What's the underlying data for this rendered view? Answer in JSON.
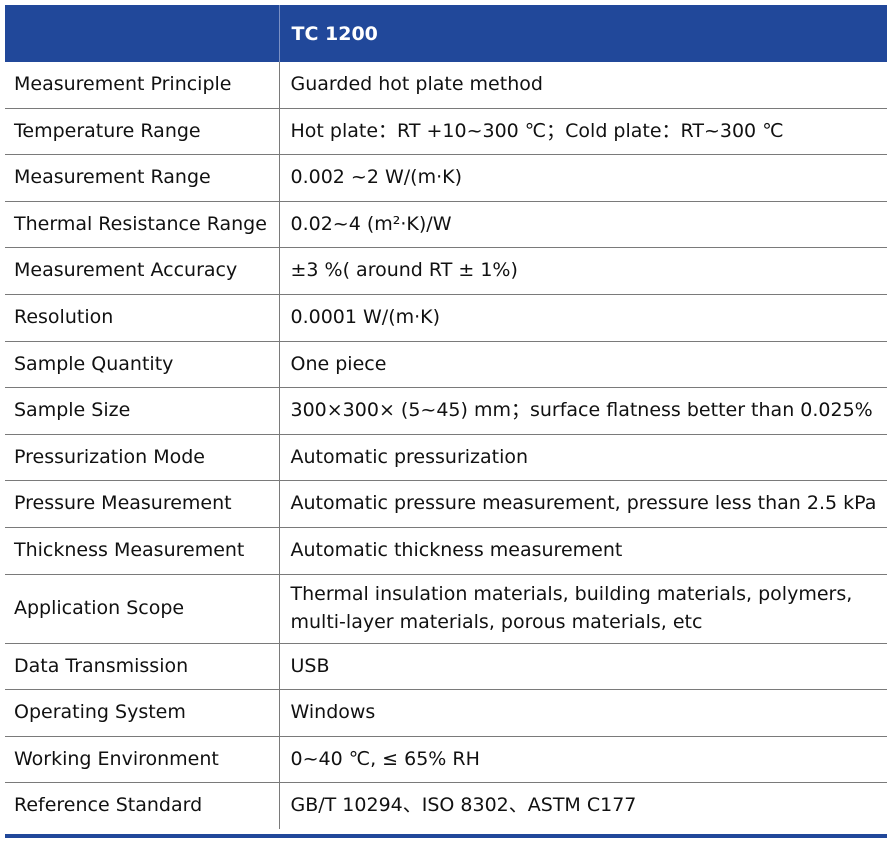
{
  "header": {
    "label_header": "",
    "model": "TC 1200"
  },
  "rows": [
    {
      "label": "Measurement Principle",
      "value": "Guarded hot plate method"
    },
    {
      "label": "Temperature Range",
      "value": "Hot plate：RT +10~300 ℃；Cold plate：RT~300 ℃"
    },
    {
      "label": "Measurement Range",
      "value": "0.002 ~2 W/(m·K)"
    },
    {
      "label": "Thermal Resistance Range",
      "value": "0.02~4 (m²·K)/W"
    },
    {
      "label": "Measurement Accuracy",
      "value": "±3 %( around RT ± 1%)"
    },
    {
      "label": "Resolution",
      "value": "0.0001 W/(m·K)"
    },
    {
      "label": "Sample Quantity",
      "value": "One piece"
    },
    {
      "label": "Sample Size",
      "value": "300×300× (5~45) mm；surface flatness better than 0.025%"
    },
    {
      "label": "Pressurization Mode",
      "value": "Automatic pressurization"
    },
    {
      "label": "Pressure Measurement",
      "value": "Automatic pressure measurement, pressure less than 2.5 kPa"
    },
    {
      "label": "Thickness Measurement",
      "value": "Automatic thickness measurement"
    },
    {
      "label": "Application Scope",
      "value": "Thermal insulation materials, building materials, polymers, multi-layer materials, porous materials, etc"
    },
    {
      "label": "Data Transmission",
      "value": "USB"
    },
    {
      "label": "Operating System",
      "value": "Windows"
    },
    {
      "label": "Working Environment",
      "value": "0~40 ℃, ≤ 65% RH"
    },
    {
      "label": "Reference Standard",
      "value": "GB/T 10294、ISO 8302、ASTM C177"
    }
  ],
  "colors": {
    "header_bg": "#21489a",
    "header_text": "#ffffff",
    "grid_line": "#7a7a7a"
  }
}
